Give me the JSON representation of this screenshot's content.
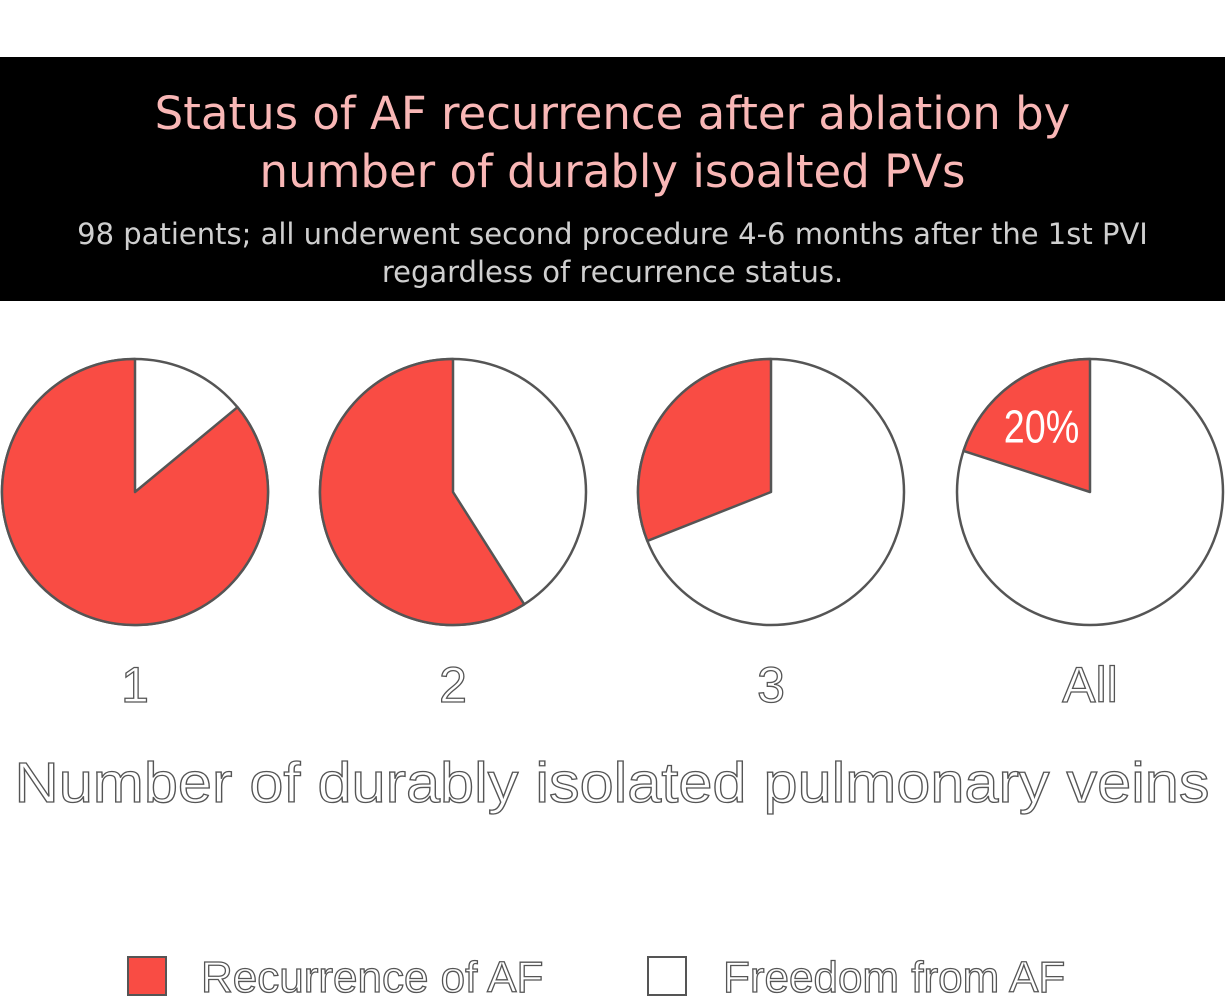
{
  "header": {
    "title_line1": "Status of AF recurrence after ablation by",
    "title_line2": "number of durably isoalted PVs",
    "subtitle_line1": "98 patients; all underwent second procedure 4-6 months after the 1st PVI",
    "subtitle_line2": "regardless of recurrence status."
  },
  "colors": {
    "recurrence": "#f94c44",
    "freedom": "#ffffff",
    "title": "#f9b7b6",
    "header_bg": "#000000"
  },
  "chart_data": {
    "type": "pie",
    "title": "Status of AF recurrence after ablation by number of durably isoalted PVs",
    "xlabel": "Number of durably isolated pulmonary veins",
    "categories": [
      "1",
      "2",
      "3",
      "All"
    ],
    "series": [
      {
        "name": "Recurrence of AF",
        "values": [
          86,
          59,
          31,
          20
        ]
      },
      {
        "name": "Freedom from AF",
        "values": [
          14,
          41,
          69,
          80
        ]
      }
    ],
    "data_labels": [
      "",
      "",
      "",
      "20%"
    ],
    "legend_position": "bottom"
  },
  "legend": {
    "recurrence_label": "Recurrence of AF",
    "freedom_label": "Freedom from AF"
  }
}
